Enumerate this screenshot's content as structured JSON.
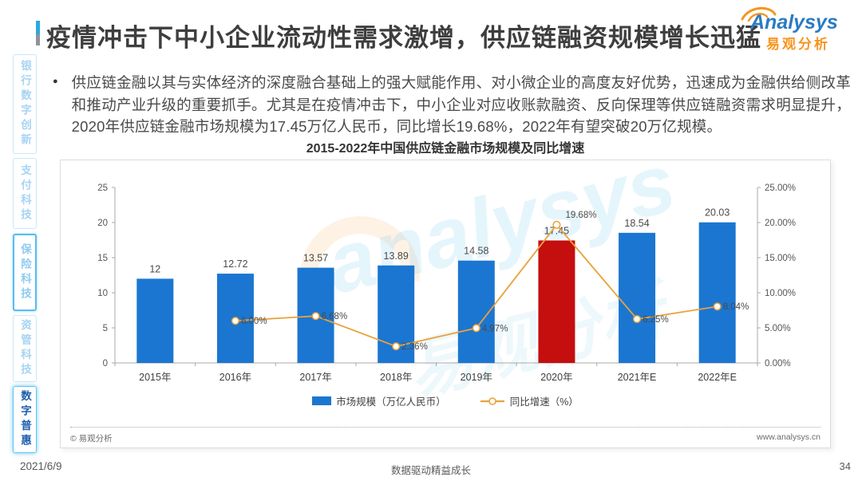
{
  "page": {
    "date": "2021/6/9",
    "slogan": "数据驱动精益成长",
    "page_number": "34"
  },
  "logo": {
    "brand": "Analysys",
    "brand_cn": "易观分析"
  },
  "header": {
    "title": "疫情冲击下中小企业流动性需求激增，供应链融资规模增长迅猛"
  },
  "sidebar": {
    "items": [
      {
        "label": "银行数字创新",
        "state": "normal"
      },
      {
        "label": "支付科技",
        "state": "normal"
      },
      {
        "label": "保险科技",
        "state": "highlighted"
      },
      {
        "label": "资管科技",
        "state": "normal"
      },
      {
        "label": "数字普惠",
        "state": "active"
      }
    ]
  },
  "intro": {
    "bullet": "●",
    "text": "供应链金融以其与实体经济的深度融合基础上的强大赋能作用、对小微企业的高度友好优势，迅速成为金融供给侧改革和推动产业升级的重要抓手。尤其是在疫情冲击下，中小企业对应收账款融资、反向保理等供应链融资需求明显提升，2020年供应链金融市场规模为17.45万亿人民币，同比增长19.68%，2022年有望突破20万亿规模。"
  },
  "chart_data": {
    "type": "bar+line",
    "title": "2015-2022年中国供应链金融市场规模及同比增速",
    "categories": [
      "2015年",
      "2016年",
      "2017年",
      "2018年",
      "2019年",
      "2020年",
      "2021年E",
      "2022年E"
    ],
    "series": [
      {
        "name": "市场规模（万亿人民币）",
        "type": "bar",
        "values": [
          12,
          12.72,
          13.57,
          13.89,
          14.58,
          17.45,
          18.54,
          20.03
        ],
        "value_labels": [
          "12",
          "12.72",
          "13.57",
          "13.89",
          "14.58",
          "17.45",
          "18.54",
          "20.03"
        ]
      },
      {
        "name": "同比增速（%）",
        "type": "line",
        "values": [
          null,
          6.0,
          6.68,
          2.36,
          4.97,
          19.68,
          6.25,
          8.04
        ],
        "value_labels": [
          "",
          "6.00%",
          "6.68%",
          "2.36%",
          "4.97%",
          "19.68%",
          "6.25%",
          "8.04%"
        ]
      }
    ],
    "highlight_index": 5,
    "left_axis": {
      "min": 0,
      "max": 25,
      "ticks": [
        0,
        5,
        10,
        15,
        20,
        25
      ]
    },
    "right_axis": {
      "min": 0,
      "max": 25,
      "tick_labels": [
        "0.00%",
        "5.00%",
        "10.00%",
        "15.00%",
        "20.00%",
        "25.00%"
      ]
    },
    "grid": false,
    "legend_position": "bottom",
    "colors": {
      "bar": "#1B76D1",
      "bar_highlight": "#C50E0E",
      "line": "#E9A23B",
      "axis": "#a8a8a8",
      "label": "#4a4a4a"
    }
  },
  "chart_footer": {
    "copyright": "© 易观分析",
    "website": "www.analysys.cn"
  },
  "watermark": {
    "text_en": "analysys",
    "text_cn": "易观分析"
  }
}
